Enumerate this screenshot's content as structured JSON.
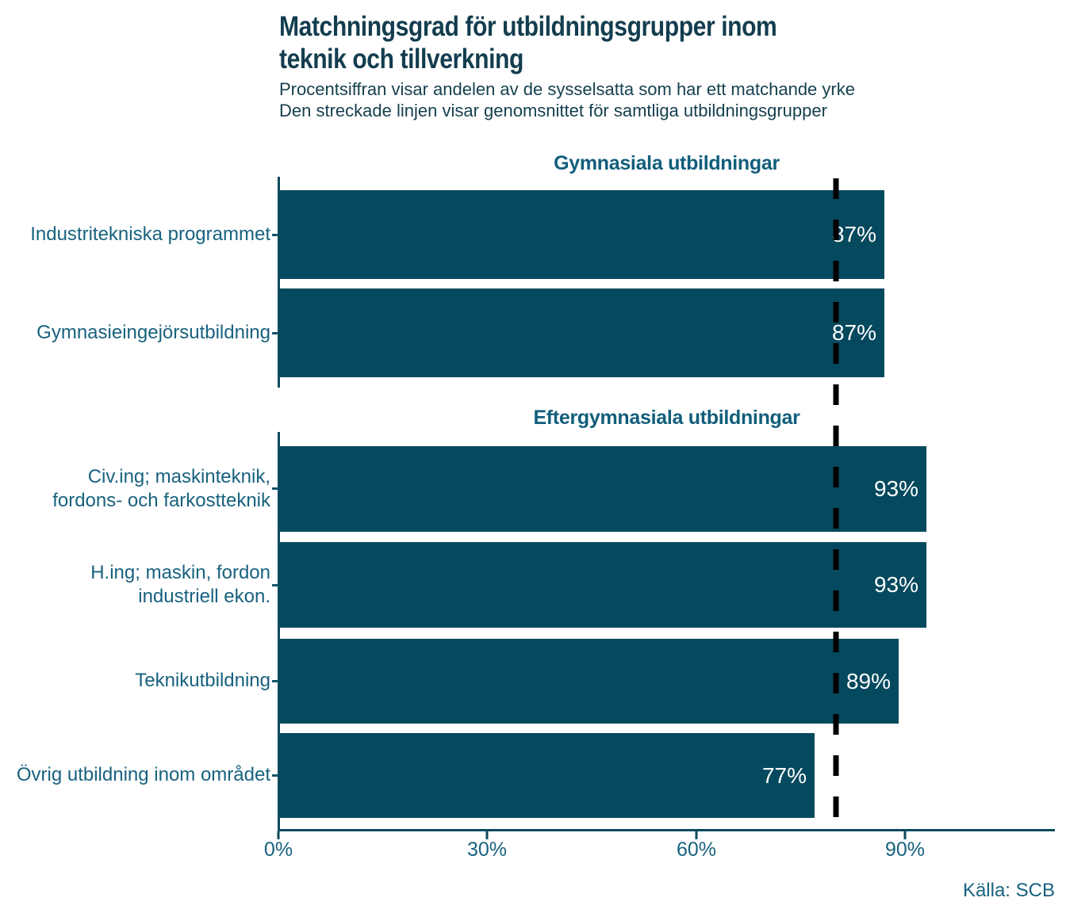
{
  "colors": {
    "bar_fill": "#05495E",
    "title_text": "#133D4F",
    "label_text": "#18627F",
    "section_header_text": "#115E7B",
    "axis_stroke": "#0B4A5E",
    "reference_line": "#000000",
    "value_label_text": "#FFFFFF",
    "background": "#FFFFFF"
  },
  "chart_data": {
    "type": "bar",
    "orientation": "horizontal",
    "title": "Matchningsgrad för utbildningsgrupper inom teknik och tillverkning",
    "title_lines": [
      "Matchningsgrad för utbildningsgrupper inom",
      "teknik och tillverkning"
    ],
    "subtitle_lines": [
      "Procentsiffran visar andelen av de sysselsatta som har ett matchande yrke",
      "Den streckade linjen visar genomsnittet för samtliga utbildningsgrupper"
    ],
    "source": "Källa: SCB",
    "unit": "percent",
    "xlim": [
      0,
      111
    ],
    "grid": false,
    "legend": false,
    "x_ticks": [
      {
        "value": 0,
        "label": "0%"
      },
      {
        "value": 30,
        "label": "30%"
      },
      {
        "value": 60,
        "label": "60%"
      },
      {
        "value": 90,
        "label": "90%"
      }
    ],
    "reference_line": {
      "value": 80,
      "style": "dashed",
      "meaning": "genomsnittet för samtliga utbildningsgrupper"
    },
    "groups": [
      {
        "header": "Gymnasiala utbildningar",
        "bars": [
          {
            "label": "Industritekniska programmet",
            "label_lines": [
              "Industritekniska programmet"
            ],
            "value": 87,
            "value_label": "87%"
          },
          {
            "label": "Gymnasieingejörsutbildning",
            "label_lines": [
              "Gymnasieingejörsutbildning"
            ],
            "value": 87,
            "value_label": "87%"
          }
        ]
      },
      {
        "header": "Eftergymnasiala utbildningar",
        "bars": [
          {
            "label": "Civ.ing; maskinteknik, fordons- och farkostteknik",
            "label_lines": [
              "Civ.ing; maskinteknik,",
              "fordons- och farkostteknik"
            ],
            "value": 93,
            "value_label": "93%"
          },
          {
            "label": "H.ing; maskin, fordon industriell ekon.",
            "label_lines": [
              "H.ing; maskin, fordon",
              "industriell ekon."
            ],
            "value": 93,
            "value_label": "93%"
          },
          {
            "label": "Teknikutbildning",
            "label_lines": [
              "Teknikutbildning"
            ],
            "value": 89,
            "value_label": "89%"
          },
          {
            "label": "Övrig utbildning inom området",
            "label_lines": [
              "Övrig utbildning inom området"
            ],
            "value": 77,
            "value_label": "77%"
          }
        ]
      }
    ]
  }
}
